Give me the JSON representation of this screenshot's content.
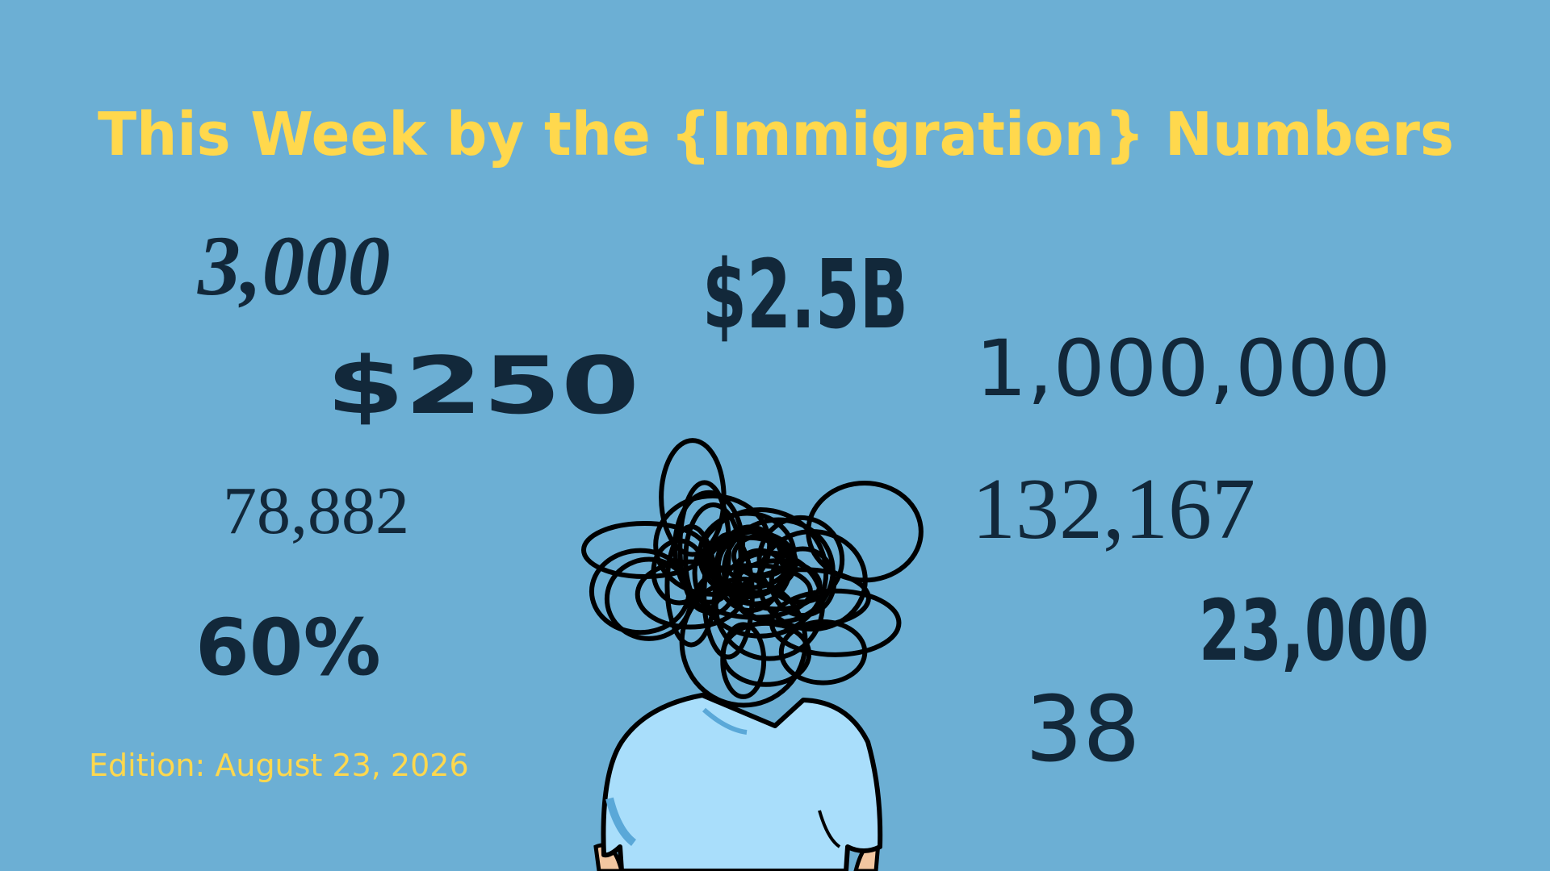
{
  "header": {
    "title": "This Week by the {Immigration} Numbers"
  },
  "numbers": [
    "3,000",
    "$2.5B",
    "$250",
    "1,000,000",
    "78,882",
    "132,167",
    "60%",
    "23,000",
    "38"
  ],
  "footer": {
    "edition": "Edition: August 23, 2026"
  }
}
